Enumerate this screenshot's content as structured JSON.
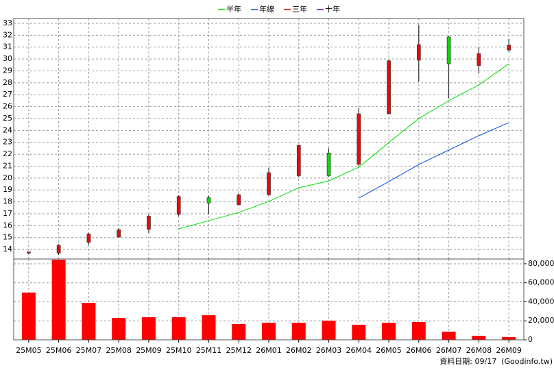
{
  "chart_data": [
    {
      "type": "candlestick",
      "categories": [
        "25M05",
        "25M06",
        "25M07",
        "25M08",
        "25M09",
        "25M10",
        "25M11",
        "25M12",
        "26M01",
        "26M02",
        "26M03",
        "26M04",
        "26M05",
        "26M06",
        "26M07",
        "26M08",
        "26M09"
      ],
      "open": [
        13.7,
        13.7,
        14.6,
        15.05,
        15.7,
        16.95,
        18.35,
        17.75,
        18.6,
        20.2,
        22.1,
        21.15,
        25.4,
        29.9,
        31.85,
        29.45,
        30.75
      ],
      "high": [
        13.8,
        14.45,
        15.4,
        15.8,
        16.95,
        18.55,
        18.5,
        18.7,
        20.85,
        22.8,
        22.5,
        25.9,
        29.9,
        32.85,
        31.9,
        31.0,
        31.7
      ],
      "low": [
        13.6,
        13.55,
        14.4,
        15.0,
        15.4,
        16.8,
        16.95,
        17.7,
        18.5,
        20.1,
        20.1,
        21.0,
        25.4,
        28.1,
        26.7,
        28.8,
        30.6
      ],
      "close": [
        13.8,
        14.35,
        15.3,
        15.65,
        16.8,
        18.45,
        17.9,
        18.6,
        20.45,
        22.75,
        20.2,
        25.4,
        29.85,
        31.2,
        29.6,
        30.45,
        31.15
      ],
      "up_color": "#ff0000",
      "down_color": "#00e000",
      "series": [
        {
          "name": "半年",
          "color": "#00e000",
          "values": [
            null,
            null,
            null,
            null,
            null,
            15.73,
            16.42,
            17.11,
            18.03,
            19.18,
            19.76,
            20.91,
            22.98,
            25.0,
            26.5,
            27.82,
            29.6
          ]
        },
        {
          "name": "年線",
          "color": "#0050e0",
          "values": [
            null,
            null,
            null,
            null,
            null,
            null,
            null,
            null,
            null,
            null,
            null,
            18.32,
            19.7,
            21.14,
            22.35,
            23.56,
            24.65
          ]
        },
        {
          "name": "三年",
          "color": "#e00000",
          "values": [
            null,
            null,
            null,
            null,
            null,
            null,
            null,
            null,
            null,
            null,
            null,
            null,
            null,
            null,
            null,
            null,
            null
          ]
        },
        {
          "name": "十年",
          "color": "#6000c0",
          "values": [
            null,
            null,
            null,
            null,
            null,
            null,
            null,
            null,
            null,
            null,
            null,
            null,
            null,
            null,
            null,
            null,
            null
          ]
        }
      ],
      "ylim": [
        13.2,
        33.4
      ],
      "yticks": [
        14,
        15,
        16,
        17,
        18,
        19,
        20,
        21,
        22,
        23,
        24,
        25,
        26,
        27,
        28,
        29,
        30,
        31,
        32,
        33
      ],
      "grid": true
    },
    {
      "type": "bar",
      "values": [
        49700,
        84300,
        38900,
        23000,
        23800,
        23800,
        25900,
        16600,
        18000,
        18000,
        20200,
        15900,
        18000,
        18700,
        8600,
        4300,
        2900
      ],
      "color": "#ff0000",
      "ylim": [
        0,
        85000
      ],
      "yticks": [
        0,
        {
          "value": 20000,
          "label": "20,000"
        },
        {
          "value": 40000,
          "label": "40,000"
        },
        {
          "value": 60000,
          "label": "60,000"
        },
        {
          "value": 80000,
          "label": "80,000"
        }
      ],
      "grid": true
    }
  ],
  "footer": "資料日期: 09/17  (Goodinfo.tw)"
}
